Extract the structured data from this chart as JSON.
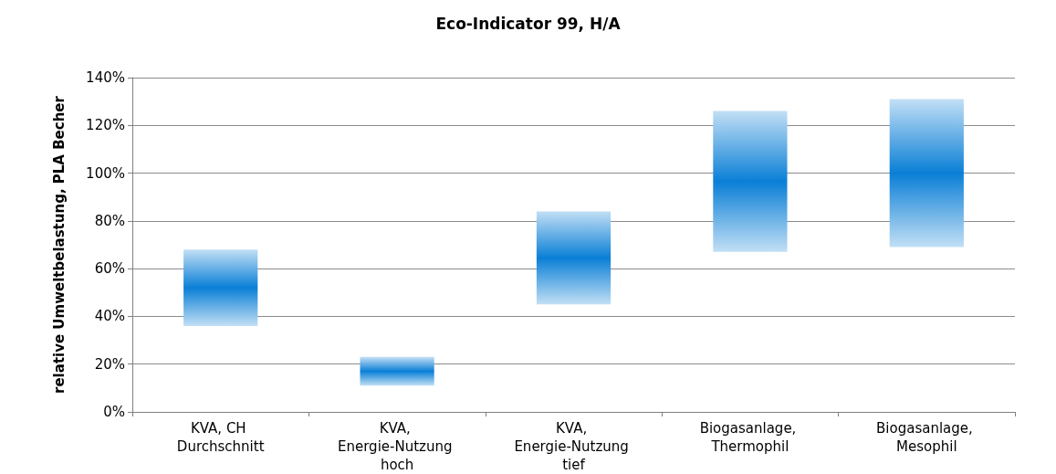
{
  "chart_data": {
    "type": "bar",
    "title": "Eco-Indicator 99, H/A",
    "ylabel": "relative Umweltbelastung, PLA Becher",
    "categories": [
      "KVA, CH Durchschnitt",
      "KVA, Energie-Nutzung hoch",
      "KVA, Energie-Nutzung tief",
      "Biogasanlage, Thermophil",
      "Biogasanlage, Mesophil"
    ],
    "base": [
      36,
      11,
      45,
      67,
      69
    ],
    "values": [
      32,
      12,
      39,
      59,
      62
    ],
    "color": "#0a7fd6",
    "ylim": [
      0,
      140
    ],
    "yticks": [
      {
        "value": 0,
        "label": "0%"
      },
      {
        "value": 20,
        "label": "20%"
      },
      {
        "value": 40,
        "label": "40%"
      },
      {
        "value": 60,
        "label": "60%"
      },
      {
        "value": 80,
        "label": "80%"
      },
      {
        "value": 100,
        "label": "100%"
      },
      {
        "value": 120,
        "label": "120%"
      },
      {
        "value": 140,
        "label": "140%"
      }
    ],
    "grid": "y"
  }
}
